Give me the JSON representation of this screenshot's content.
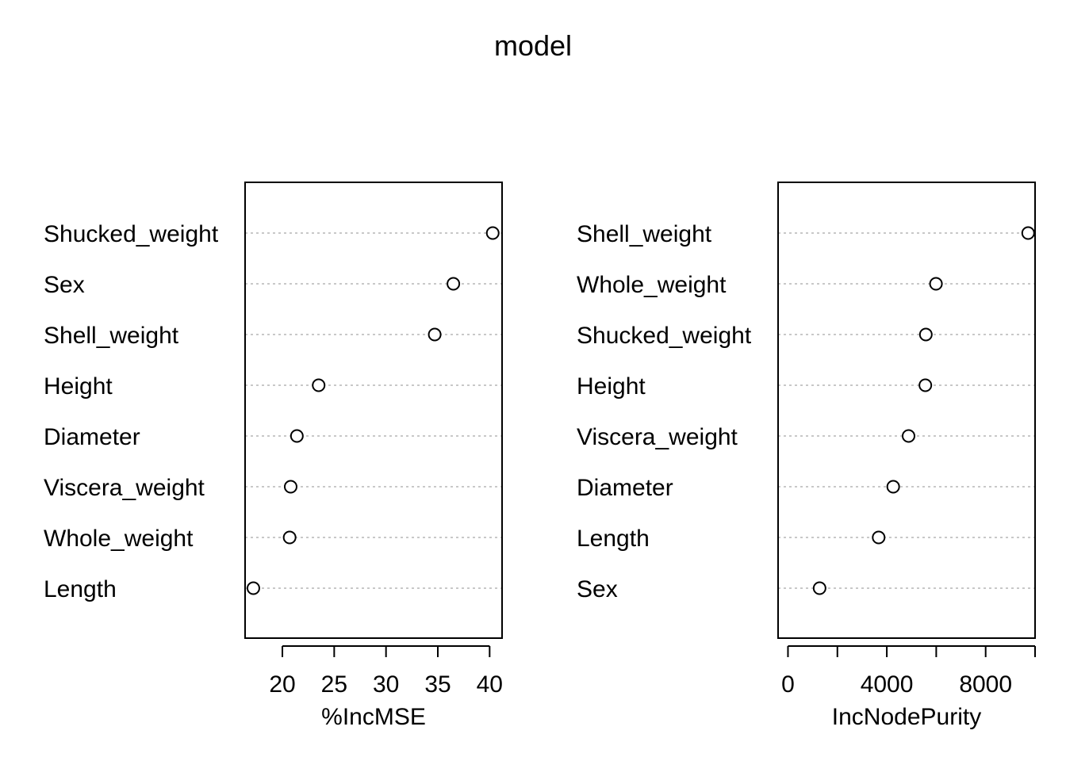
{
  "title": "model",
  "chart_data": [
    {
      "type": "scatter",
      "xlabel": "%IncMSE",
      "ylabel": "",
      "xlim": [
        16.4,
        41.2
      ],
      "xticks": [
        20,
        25,
        30,
        35,
        40
      ],
      "xtick_labels": [
        "20",
        "25",
        "30",
        "35",
        "40"
      ],
      "categories": [
        "Shucked_weight",
        "Sex",
        "Shell_weight",
        "Height",
        "Diameter",
        "Viscera_weight",
        "Whole_weight",
        "Length"
      ],
      "values": [
        40.3,
        36.5,
        34.7,
        23.5,
        21.4,
        20.8,
        20.7,
        17.2
      ],
      "grid": "dotted horizontal guide lines",
      "marker": "open circle"
    },
    {
      "type": "scatter",
      "xlabel": "IncNodePurity",
      "ylabel": "",
      "xlim": [
        -400,
        10000
      ],
      "xticks": [
        0,
        2000,
        4000,
        6000,
        8000,
        10000
      ],
      "xtick_labels": [
        "0",
        "",
        "4000",
        "",
        "8000",
        ""
      ],
      "categories": [
        "Shell_weight",
        "Whole_weight",
        "Shucked_weight",
        "Height",
        "Viscera_weight",
        "Diameter",
        "Length",
        "Sex"
      ],
      "values": [
        9720,
        5990,
        5580,
        5560,
        4880,
        4260,
        3670,
        1280
      ],
      "grid": "dotted horizontal guide lines",
      "marker": "open circle"
    }
  ]
}
